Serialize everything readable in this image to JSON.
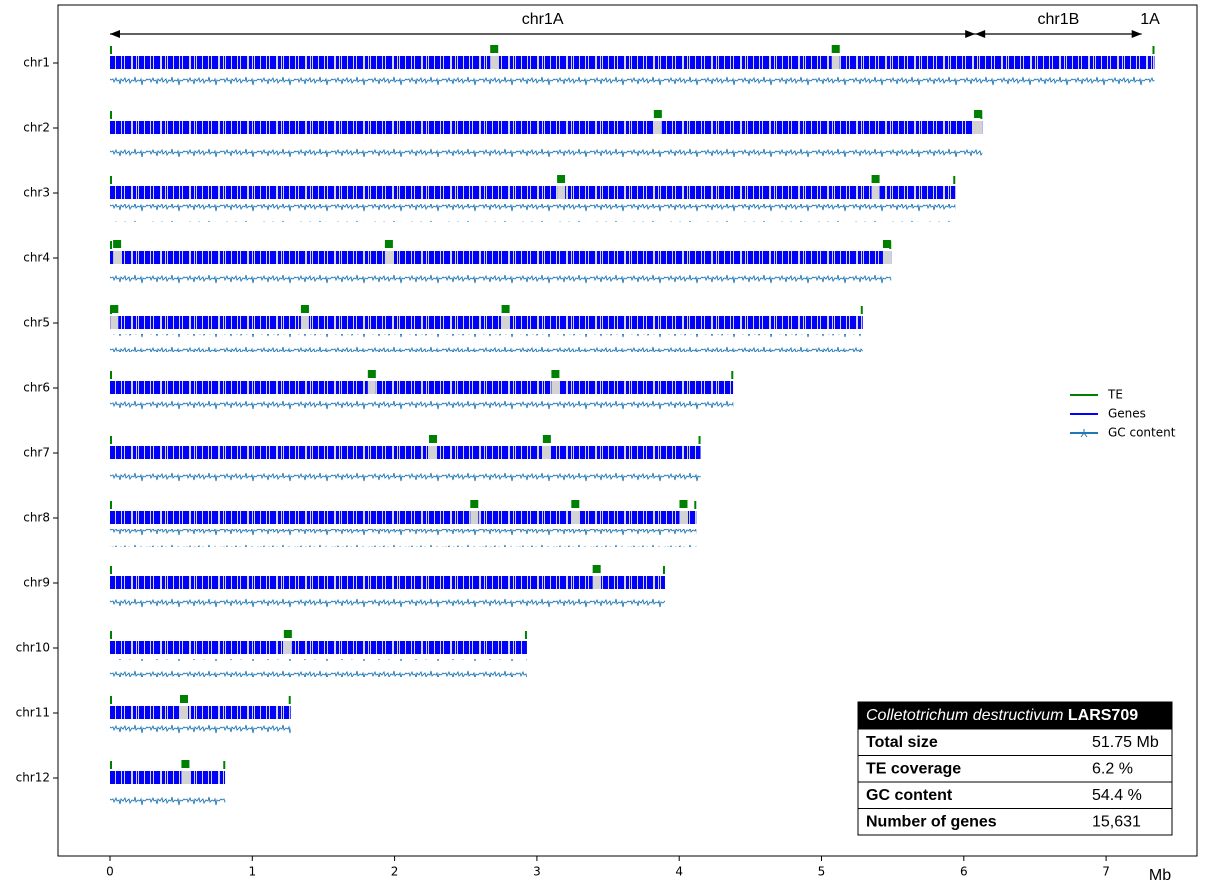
{
  "chart_data": {
    "type": "genome",
    "x_label": "Mb",
    "xlim": [
      0,
      7.5
    ],
    "xticks": [
      0,
      1,
      2,
      3,
      4,
      5,
      6,
      7
    ],
    "legend": "center right",
    "series": [
      {
        "name": "TE",
        "color": "#008000"
      },
      {
        "name": "Genes",
        "color": "#0000ff"
      },
      {
        "name": "GC content",
        "color": "#1f77b4"
      }
    ],
    "chromosomes": [
      {
        "name": "chr1",
        "length": 7.34,
        "te_blocks": [
          2.7,
          5.1
        ]
      },
      {
        "name": "chr2",
        "length": 6.13,
        "te_blocks": [
          3.85,
          6.1
        ]
      },
      {
        "name": "chr3",
        "length": 5.94,
        "te_blocks": [
          3.17,
          5.38
        ]
      },
      {
        "name": "chr4",
        "length": 5.49,
        "te_blocks": [
          0.05,
          1.96,
          5.46
        ]
      },
      {
        "name": "chr5",
        "length": 5.29,
        "te_blocks": [
          0.03,
          1.37,
          2.78
        ]
      },
      {
        "name": "chr6",
        "length": 4.38,
        "te_blocks": [
          1.84,
          3.13
        ]
      },
      {
        "name": "chr7",
        "length": 4.15,
        "te_blocks": [
          2.27,
          3.07
        ]
      },
      {
        "name": "chr8",
        "length": 4.12,
        "te_blocks": [
          2.56,
          3.27,
          4.03
        ]
      },
      {
        "name": "chr9",
        "length": 3.9,
        "te_blocks": [
          3.42
        ]
      },
      {
        "name": "chr10",
        "length": 2.93,
        "te_blocks": [
          1.25
        ]
      },
      {
        "name": "chr11",
        "length": 1.27,
        "te_blocks": [
          0.52
        ]
      },
      {
        "name": "chr12",
        "length": 0.81,
        "te_blocks": [
          0.53
        ]
      }
    ],
    "annotations": [
      {
        "label": "chr1A",
        "start": 0,
        "end": 6.08
      },
      {
        "label": "chr1B",
        "start": 6.08,
        "end": 7.25
      },
      {
        "label": "1A",
        "start": 7.25,
        "end": 7.34
      }
    ],
    "info_table": {
      "species": "Colletotrichum destructivum",
      "strain": "LARS709",
      "rows": [
        [
          "Total size",
          "51.75 Mb"
        ],
        [
          "TE coverage",
          "6.2 %"
        ],
        [
          "GC content",
          "54.4 %"
        ],
        [
          "Number of genes",
          "15,631"
        ]
      ]
    }
  }
}
